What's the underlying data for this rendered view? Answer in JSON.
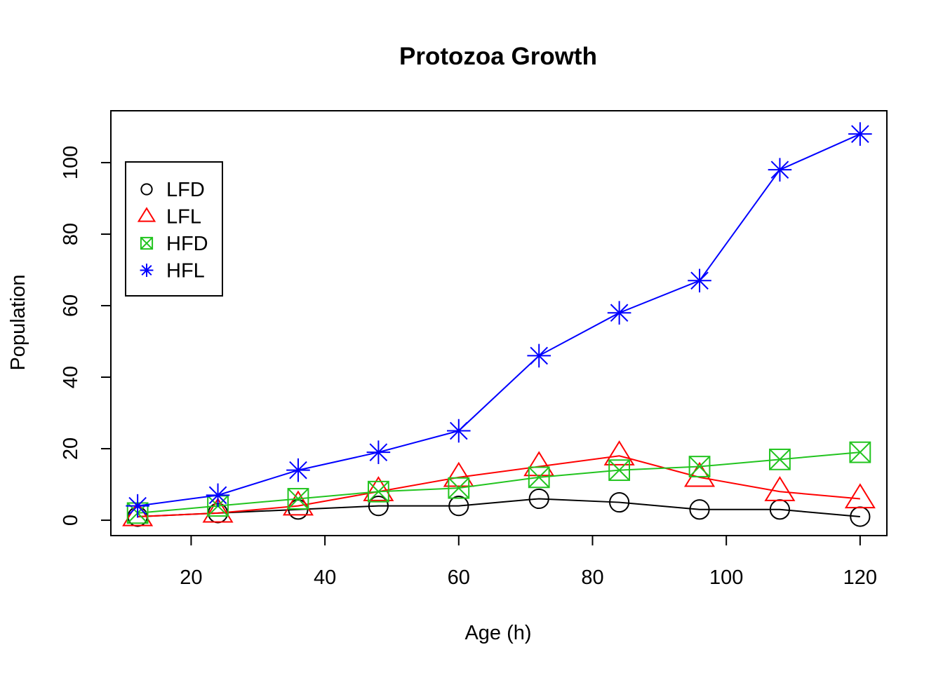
{
  "chart_data": {
    "type": "line",
    "title": "Protozoa Growth",
    "xlabel": "Age (h)",
    "ylabel": "Population",
    "xlim": [
      8,
      124
    ],
    "ylim": [
      -4.3,
      114.5
    ],
    "xticks": [
      20,
      40,
      60,
      80,
      100,
      120
    ],
    "yticks": [
      0,
      20,
      40,
      60,
      80,
      100
    ],
    "grid": false,
    "legend_position": "top-left",
    "x": [
      12,
      24,
      36,
      48,
      60,
      72,
      84,
      96,
      108,
      120
    ],
    "series": [
      {
        "name": "LFD",
        "color": "#000000",
        "marker": "circle",
        "values": [
          1,
          2,
          3,
          4,
          4,
          6,
          5,
          3,
          3,
          1
        ]
      },
      {
        "name": "LFL",
        "color": "#ff0000",
        "marker": "triangle",
        "values": [
          1,
          2,
          4,
          8,
          12,
          15,
          18,
          12,
          8,
          6
        ]
      },
      {
        "name": "HFD",
        "color": "#22c41f",
        "marker": "boxed-x",
        "values": [
          2,
          4,
          6,
          8,
          9,
          12,
          14,
          15,
          17,
          19
        ]
      },
      {
        "name": "HFL",
        "color": "#0000ff",
        "marker": "asterisk",
        "values": [
          4,
          7,
          14,
          19,
          25,
          46,
          58,
          67,
          98,
          108
        ]
      }
    ]
  }
}
